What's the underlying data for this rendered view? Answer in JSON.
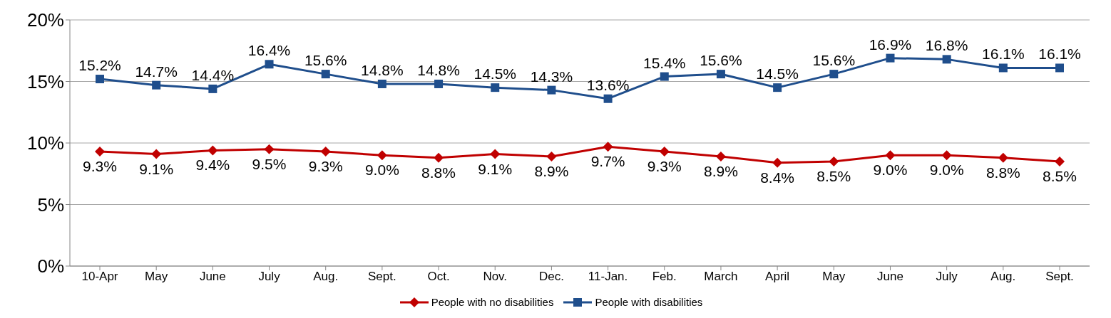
{
  "chart_data": {
    "type": "line",
    "categories": [
      "10-Apr",
      "May",
      "June",
      "July",
      "Aug.",
      "Sept.",
      "Oct.",
      "Nov.",
      "Dec.",
      "11-Jan.",
      "Feb.",
      "March",
      "April",
      "May",
      "June",
      "July",
      "Aug.",
      "Sept."
    ],
    "series": [
      {
        "name": "People with no disabilities",
        "color": "#c00000",
        "marker": "diamond",
        "values": [
          9.3,
          9.1,
          9.4,
          9.5,
          9.3,
          9.0,
          8.8,
          9.1,
          8.9,
          9.7,
          9.3,
          8.9,
          8.4,
          8.5,
          9.0,
          9.0,
          8.8,
          8.5
        ],
        "value_labels": [
          "9.3%",
          "9.1%",
          "9.4%",
          "9.5%",
          "9.3%",
          "9.0%",
          "8.8%",
          "9.1%",
          "8.9%",
          "9.7%",
          "9.3%",
          "8.9%",
          "8.4%",
          "8.5%",
          "9.0%",
          "9.0%",
          "8.8%",
          "8.5%"
        ]
      },
      {
        "name": "People with disabilities",
        "color": "#1f4e8c",
        "marker": "square",
        "values": [
          15.2,
          14.7,
          14.4,
          16.4,
          15.6,
          14.8,
          14.8,
          14.5,
          14.3,
          13.6,
          15.4,
          15.6,
          14.5,
          15.6,
          16.9,
          16.8,
          16.1,
          16.1
        ],
        "value_labels": [
          "15.2%",
          "14.7%",
          "14.4%",
          "16.4%",
          "15.6%",
          "14.8%",
          "14.8%",
          "14.5%",
          "14.3%",
          "13.6%",
          "15.4%",
          "15.6%",
          "14.5%",
          "15.6%",
          "16.9%",
          "16.8%",
          "16.1%",
          "16.1%"
        ]
      }
    ],
    "ylim": [
      0,
      20
    ],
    "yticks": [
      {
        "value": 0,
        "label": "0%"
      },
      {
        "value": 5,
        "label": "5%"
      },
      {
        "value": 10,
        "label": "10%"
      },
      {
        "value": 15,
        "label": "15%"
      },
      {
        "value": 20,
        "label": "20%"
      }
    ],
    "grid": "y",
    "legend": "bottom",
    "line_style": "solid"
  }
}
